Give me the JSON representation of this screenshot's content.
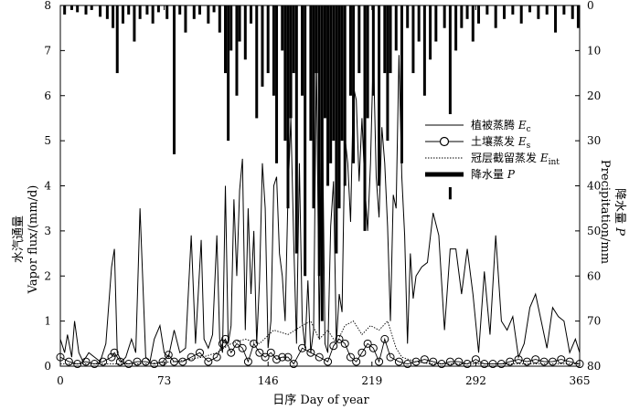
{
  "chart_data": {
    "type": "line",
    "xlabel": "日序 Day of year",
    "ylabel_left_cn": "水汽通量",
    "ylabel_left_en": "Vapor flux/(mm/d)",
    "ylabel_right_cn": "降水量",
    "ylabel_right_sym": "P",
    "ylabel_right_en": "Precipitation/mm",
    "xlim": [
      0,
      365
    ],
    "ylim_left": [
      0,
      8
    ],
    "ylim_right_inverted": [
      0,
      80
    ],
    "xticks": [
      "0",
      "73",
      "146",
      "219",
      "292",
      "365"
    ],
    "yticks_left": [
      "0",
      "1",
      "2",
      "3",
      "4",
      "5",
      "6",
      "7",
      "8"
    ],
    "yticks_right": [
      "0",
      "10",
      "20",
      "30",
      "40",
      "50",
      "60",
      "70",
      "80"
    ],
    "legend": [
      {
        "label": "植被蒸腾 ",
        "sym": "E",
        "sub": "c",
        "style": "line"
      },
      {
        "label": "土壤蒸发 ",
        "sym": "E",
        "sub": "s",
        "style": "circle"
      },
      {
        "label": "冠层截留蒸发 ",
        "sym": "E",
        "sub": "int",
        "style": "dotted"
      },
      {
        "label": "降水量 ",
        "sym": "P",
        "sub": "",
        "style": "thick"
      }
    ],
    "series": [
      {
        "name": "植被蒸腾 Ec",
        "axis": "left",
        "x": [
          0,
          3,
          5,
          8,
          10,
          13,
          16,
          20,
          24,
          28,
          32,
          36,
          38,
          40,
          43,
          46,
          50,
          53,
          56,
          60,
          63,
          66,
          70,
          73,
          76,
          80,
          84,
          88,
          92,
          95,
          99,
          101,
          104,
          107,
          110,
          112,
          114,
          116,
          118,
          120,
          122,
          124,
          126,
          128,
          130,
          132,
          134,
          136,
          138,
          140,
          142,
          144,
          146,
          148,
          150,
          152,
          154,
          156,
          158,
          160,
          162,
          164,
          166,
          168,
          170,
          172,
          174,
          176,
          178,
          180,
          182,
          184,
          186,
          188,
          190,
          192,
          194,
          196,
          198,
          200,
          202,
          204,
          206,
          208,
          210,
          212,
          214,
          216,
          218,
          220,
          222,
          224,
          226,
          228,
          230,
          232,
          234,
          236,
          238,
          240,
          242,
          244,
          246,
          248,
          250,
          254,
          258,
          262,
          266,
          270,
          274,
          278,
          282,
          286,
          290,
          294,
          298,
          302,
          306,
          310,
          314,
          318,
          322,
          326,
          330,
          334,
          338,
          342,
          346,
          350,
          354,
          358,
          362,
          365
        ],
        "y": [
          0.6,
          0.3,
          0.7,
          0.2,
          1.0,
          0.3,
          0.1,
          0.3,
          0.2,
          0.1,
          0.5,
          2.2,
          2.6,
          0.3,
          0.1,
          0.2,
          0.6,
          0.3,
          3.5,
          0.2,
          0.1,
          0.6,
          0.9,
          0.3,
          0.2,
          0.8,
          0.3,
          0.4,
          2.9,
          0.5,
          2.8,
          0.6,
          0.4,
          0.7,
          2.9,
          0.6,
          0.3,
          4.0,
          0.5,
          0.9,
          3.7,
          2.0,
          3.9,
          4.6,
          0.8,
          3.5,
          1.6,
          3.0,
          0.5,
          1.9,
          4.5,
          3.5,
          0.4,
          1.0,
          4.0,
          4.2,
          2.5,
          2.0,
          1.0,
          3.8,
          5.5,
          2.8,
          0.5,
          4.5,
          1.0,
          0.4,
          1.9,
          0.3,
          0.8,
          6.9,
          0.6,
          6.0,
          0.5,
          0.3,
          3.1,
          4.1,
          0.5,
          1.6,
          1.2,
          5.1,
          4.5,
          3.2,
          6.2,
          5.9,
          4.1,
          5.5,
          4.0,
          3.0,
          4.5,
          7.0,
          4.2,
          3.3,
          5.3,
          4.5,
          3.1,
          1.0,
          3.8,
          3.5,
          6.9,
          4.2,
          2.9,
          0.5,
          2.5,
          1.5,
          2.0,
          2.2,
          2.3,
          3.4,
          2.9,
          0.8,
          2.6,
          2.6,
          1.6,
          2.6,
          1.6,
          0.3,
          2.1,
          0.7,
          2.9,
          1.0,
          0.8,
          1.1,
          0.2,
          0.5,
          1.3,
          1.6,
          1.0,
          0.4,
          1.3,
          1.1,
          1.0,
          0.3,
          0.6,
          0.3
        ]
      },
      {
        "name": "土壤蒸发 Es",
        "axis": "left",
        "x": [
          0,
          6,
          12,
          18,
          24,
          30,
          36,
          38,
          42,
          48,
          54,
          60,
          66,
          72,
          76,
          80,
          86,
          92,
          98,
          104,
          110,
          114,
          116,
          120,
          124,
          128,
          132,
          136,
          140,
          144,
          148,
          152,
          156,
          160,
          164,
          170,
          176,
          182,
          188,
          192,
          196,
          200,
          204,
          208,
          212,
          216,
          220,
          224,
          228,
          232,
          238,
          244,
          250,
          256,
          262,
          268,
          274,
          280,
          286,
          292,
          298,
          304,
          310,
          316,
          322,
          328,
          334,
          340,
          346,
          352,
          358,
          365
        ],
        "y": [
          0.2,
          0.1,
          0.05,
          0.1,
          0.05,
          0.1,
          0.2,
          0.3,
          0.1,
          0.05,
          0.1,
          0.1,
          0.05,
          0.1,
          0.25,
          0.1,
          0.1,
          0.2,
          0.3,
          0.1,
          0.2,
          0.5,
          0.6,
          0.3,
          0.5,
          0.4,
          0.1,
          0.5,
          0.3,
          0.2,
          0.3,
          0.15,
          0.2,
          0.2,
          0.05,
          0.4,
          0.3,
          0.2,
          0.1,
          0.45,
          0.6,
          0.5,
          0.2,
          0.1,
          0.3,
          0.5,
          0.4,
          0.1,
          0.6,
          0.2,
          0.1,
          0.05,
          0.1,
          0.15,
          0.1,
          0.05,
          0.1,
          0.1,
          0.05,
          0.15,
          0.05,
          0.05,
          0.05,
          0.1,
          0.15,
          0.1,
          0.15,
          0.1,
          0.1,
          0.15,
          0.1,
          0.05
        ]
      },
      {
        "name": "冠层截留蒸发 Eint",
        "axis": "left",
        "x": [
          0,
          20,
          40,
          60,
          80,
          100,
          110,
          120,
          130,
          140,
          150,
          160,
          170,
          176,
          182,
          188,
          194,
          200,
          206,
          212,
          218,
          224,
          230,
          236,
          240,
          250,
          260,
          280,
          300,
          320,
          340,
          365
        ],
        "y": [
          0.05,
          0.05,
          0.05,
          0.05,
          0.1,
          0.2,
          0.3,
          0.5,
          0.6,
          0.5,
          0.8,
          0.7,
          0.9,
          1.0,
          0.6,
          0.8,
          0.5,
          0.9,
          1.0,
          0.7,
          0.9,
          0.8,
          1.0,
          0.4,
          0.2,
          0.1,
          0.05,
          0.05,
          0.05,
          0.05,
          0.05,
          0.05
        ]
      },
      {
        "name": "降水量 P",
        "axis": "right",
        "x": [
          3,
          8,
          12,
          18,
          22,
          28,
          33,
          37,
          40,
          44,
          48,
          52,
          56,
          61,
          65,
          69,
          75,
          80,
          84,
          88,
          94,
          98,
          104,
          108,
          112,
          116,
          118,
          120,
          124,
          126,
          130,
          134,
          138,
          142,
          146,
          150,
          152,
          156,
          158,
          160,
          162,
          164,
          166,
          170,
          172,
          176,
          178,
          180,
          182,
          184,
          186,
          188,
          190,
          192,
          194,
          196,
          198,
          200,
          204,
          206,
          210,
          214,
          216,
          220,
          224,
          228,
          230,
          232,
          236,
          240,
          244,
          248,
          252,
          256,
          260,
          264,
          270,
          274,
          278,
          282,
          286,
          290,
          294,
          300,
          306,
          312,
          318,
          324,
          330,
          336,
          342,
          348,
          354,
          360,
          364
        ],
        "y": [
          2,
          1,
          1.5,
          2,
          1,
          2.5,
          3,
          5,
          15,
          4,
          2,
          8,
          3,
          2,
          4,
          1.5,
          3,
          33,
          2,
          6,
          3,
          2,
          4,
          1.5,
          6,
          15,
          30,
          10,
          20,
          8,
          12,
          4,
          25,
          18,
          15,
          20,
          35,
          10,
          30,
          45,
          25,
          15,
          55,
          20,
          60,
          30,
          45,
          15,
          60,
          70,
          25,
          40,
          35,
          30,
          55,
          45,
          30,
          40,
          20,
          35,
          15,
          50,
          25,
          20,
          40,
          15,
          30,
          15,
          10,
          35,
          5,
          15,
          8,
          20,
          12,
          8,
          5,
          43,
          10,
          5,
          3,
          8,
          4,
          2,
          5,
          3,
          2,
          4,
          1.5,
          3,
          2,
          6,
          2,
          3,
          5
        ]
      }
    ]
  }
}
